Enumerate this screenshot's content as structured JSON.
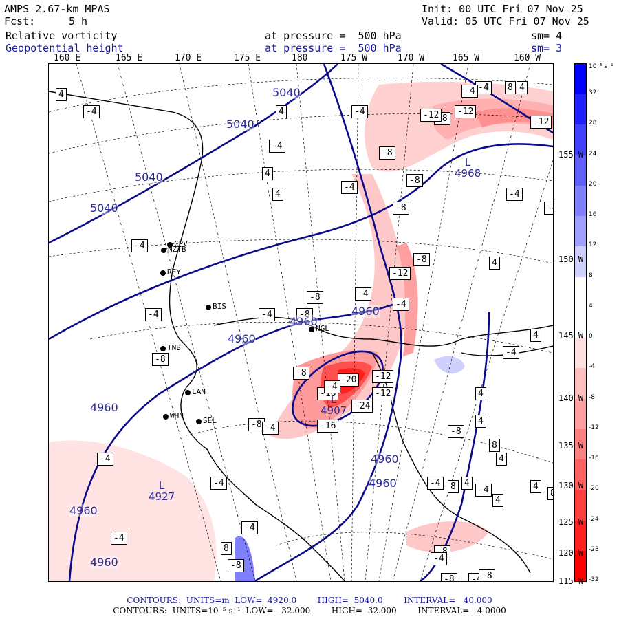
{
  "header": {
    "model": "AMPS 2.67-km MPAS",
    "init": "Init: 00 UTC Fri 07 Nov 25",
    "fcst_label": "Fcst:",
    "fcst_value": "5 h",
    "valid": "Valid: 05 UTC Fri 07 Nov 25",
    "field1": "Relative vorticity",
    "field1_level": "at pressure =  500 hPa",
    "field1_sm": "sm= 4",
    "field2": "Geopotential height",
    "field2_level": "at pressure =  500 hPa",
    "field2_sm": "sm= 3"
  },
  "lon_labels": [
    "160 E",
    "165 E",
    "170 E",
    "175 E",
    "180",
    "175 W",
    "170 W",
    "165 W",
    "160 W"
  ],
  "lat_labels": [
    "155 W",
    "150 W",
    "145 W",
    "140 W",
    "135 W",
    "130 W",
    "125 W",
    "120 W",
    "115 W"
  ],
  "colorbar": {
    "unit": "10⁻⁵ s⁻¹",
    "ticks": [
      "32",
      "28",
      "24",
      "20",
      "16",
      "12",
      "8",
      "4",
      "0",
      "-4",
      "-8",
      "-12",
      "-16",
      "-20",
      "-24",
      "-28",
      "-32"
    ],
    "colors": [
      "#0000ff",
      "#2020ff",
      "#4040ff",
      "#6060ff",
      "#8080ff",
      "#a0a0ff",
      "#d0d0ff",
      "#ffffff",
      "#ffffff",
      "#ffe0e0",
      "#ffc0c0",
      "#ffa0a0",
      "#ff8080",
      "#ff6060",
      "#ff4040",
      "#ff2020",
      "#ff0000"
    ]
  },
  "stations": [
    "CPV",
    "NZTB",
    "REY",
    "BIS",
    "NGL",
    "TNB",
    "LAN",
    "WHN",
    "SEL"
  ],
  "height_labels": [
    "5040",
    "5040",
    "5040",
    "5040",
    "4960",
    "4960",
    "4960",
    "4960",
    "4960",
    "4960",
    "4960",
    "4960"
  ],
  "lows": [
    {
      "label": "L",
      "value": "4968"
    },
    {
      "label": "L",
      "value": "4907"
    },
    {
      "label": "L",
      "value": "4927"
    }
  ],
  "vort_labels": [
    "4",
    "-4",
    "4",
    "-4",
    "8",
    "4",
    "-4",
    "-4",
    "-8",
    "-12",
    "-12",
    "-16",
    "-12",
    "-8",
    "-4",
    "4",
    "4",
    "-8",
    "-8",
    "-4",
    "-4",
    "-4",
    "-4",
    "-4",
    "-4",
    "-8",
    "-4",
    "-8",
    "-4",
    "-12",
    "-4",
    "-8",
    "4",
    "4",
    "-4",
    "4",
    "-8",
    "-8",
    "-8",
    "-16",
    "-12",
    "-20",
    "-12",
    "-24",
    "-16",
    "-8",
    "-4",
    "-4",
    "4",
    "8",
    "4",
    "-4",
    "4",
    "8",
    "-4",
    "4",
    "4",
    "8",
    "-4",
    "8",
    "-4",
    "-4",
    "-4",
    "-8",
    "-8",
    "-4",
    "-4",
    "-8",
    "-8"
  ],
  "footer": {
    "line1": "CONTOURS:  UNITS=m  LOW=  4920.0        HIGH=  5040.0        INTERVAL=   40.000",
    "line2": "CONTOURS:  UNITS=10⁻⁵ s⁻¹  LOW=  -32.000        HIGH=  32.000        INTERVAL=   4.0000"
  }
}
